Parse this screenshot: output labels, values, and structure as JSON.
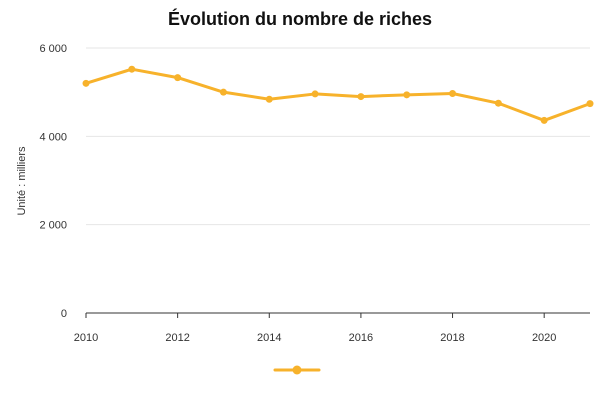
{
  "chart_data": {
    "type": "line",
    "title": "Évolution du nombre de riches",
    "ylabel": "Unité : milliers",
    "xlabel": "",
    "x": [
      2010,
      2011,
      2012,
      2013,
      2014,
      2015,
      2016,
      2017,
      2018,
      2019,
      2020,
      2021
    ],
    "series": [
      {
        "name": "",
        "values": [
          5200,
          5520,
          5330,
          5000,
          4840,
          4960,
          4900,
          4940,
          4970,
          4750,
          4360,
          4740
        ]
      }
    ],
    "xlim": [
      2010,
      2021
    ],
    "ylim": [
      0,
      6000
    ],
    "x_ticks": [
      2010,
      2012,
      2014,
      2016,
      2018,
      2020
    ],
    "x_tick_labels": [
      "2010",
      "2012",
      "2014",
      "2016",
      "2018",
      "2020"
    ],
    "y_ticks": [
      0,
      2000,
      4000,
      6000
    ],
    "y_tick_labels": [
      "0",
      "2 000",
      "4 000",
      "6 000"
    ],
    "grid": true,
    "legend_position": "bottom",
    "colors": {
      "series": "#f7b22b",
      "grid": "#e6e6e6",
      "axis": "#333333"
    }
  }
}
